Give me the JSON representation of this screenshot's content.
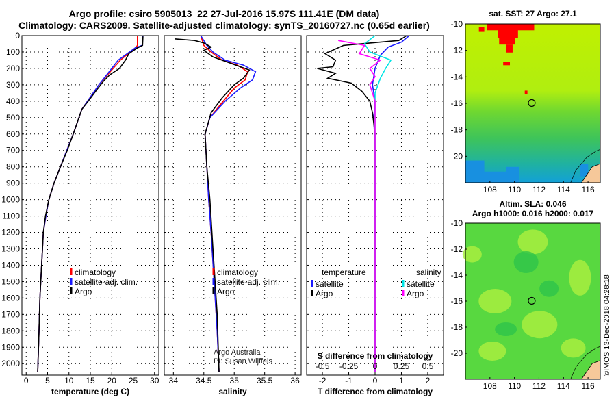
{
  "header": {
    "line1": "Argo profile: csiro 5905013_22 27-Jul-2016 15.97S 111.41E (DM data)",
    "line2": "Climatology: CARS2009. Satellite-adjusted climatology: synTS_20160727.nc (0.65d earlier)"
  },
  "colors": {
    "climatology": "#ff0000",
    "satellite": "#1a1aff",
    "argo": "#000000",
    "sal_satellite": "#00e5e5",
    "sal_argo": "#ff00ff"
  },
  "chart_data": [
    {
      "type": "line",
      "id": "temperature",
      "xlabel": "temperature (deg C)",
      "ylabel": "depth",
      "xlim": [
        -1,
        31
      ],
      "ylim": [
        0,
        2070
      ],
      "y_inverted": true,
      "xticks": [
        0,
        5,
        10,
        15,
        20,
        25,
        30
      ],
      "yticks": [
        0,
        100,
        200,
        300,
        400,
        500,
        600,
        700,
        800,
        900,
        1000,
        1100,
        1200,
        1300,
        1400,
        1500,
        1600,
        1700,
        1800,
        1900,
        2000
      ],
      "legend": [
        "climatology",
        "satellite-adj. clim.",
        "Argo"
      ],
      "series": [
        {
          "name": "climatology",
          "x": [
            26,
            26,
            25.5,
            22,
            17,
            13,
            11,
            9.5,
            8,
            6.5,
            5.3,
            4.6,
            4,
            3.6,
            3.2,
            3,
            2.7
          ],
          "y": [
            0,
            60,
            75,
            150,
            300,
            450,
            600,
            700,
            800,
            900,
            1000,
            1100,
            1200,
            1400,
            1600,
            1800,
            2050
          ]
        },
        {
          "name": "satellite-adj. clim.",
          "x": [
            27.3,
            27.1,
            25.5,
            21.5,
            17,
            13,
            11,
            9.5,
            8,
            6.5,
            5.3,
            4.6,
            4,
            3.6,
            3.2,
            3,
            2.7
          ],
          "y": [
            0,
            60,
            75,
            150,
            300,
            450,
            600,
            700,
            800,
            900,
            1000,
            1100,
            1200,
            1400,
            1600,
            1800,
            2050
          ]
        },
        {
          "name": "Argo",
          "x": [
            27.3,
            27.2,
            26,
            24,
            23.2,
            21.8,
            19.5,
            18,
            16.5,
            14.5,
            13,
            11,
            9.6,
            8,
            6.5,
            5.3,
            4.5,
            4,
            3.6,
            3.2,
            3,
            2.7
          ],
          "y": [
            5,
            60,
            75,
            110,
            150,
            200,
            240,
            280,
            330,
            400,
            450,
            600,
            700,
            800,
            900,
            1000,
            1100,
            1200,
            1400,
            1600,
            1800,
            2050
          ]
        }
      ]
    },
    {
      "type": "line",
      "id": "salinity",
      "xlabel": "salinity",
      "ylabel": "depth",
      "xlim": [
        33.85,
        36.1
      ],
      "ylim": [
        0,
        2070
      ],
      "y_inverted": true,
      "xticks": [
        34,
        34.5,
        35,
        35.5,
        36
      ],
      "xticklabels": [
        "34",
        "34.5",
        "35",
        "35.5",
        "36"
      ],
      "yticks": [
        0,
        100,
        200,
        300,
        400,
        500,
        600,
        700,
        800,
        900,
        1000,
        1100,
        1200,
        1300,
        1400,
        1500,
        1600,
        1700,
        1800,
        1900,
        2000
      ],
      "legend": [
        "climatology",
        "satellite-adj. clim.",
        "Argo"
      ],
      "annotation": [
        "Argo Australia",
        "PI: Susan Wijffels"
      ],
      "series": [
        {
          "name": "climatology",
          "x": [
            34.45,
            34.5,
            34.62,
            34.8,
            35.05,
            35.22,
            35.18,
            35,
            34.82,
            34.6,
            34.52,
            34.55,
            34.58,
            34.62,
            34.67,
            34.72,
            34.75
          ],
          "y": [
            0,
            60,
            100,
            150,
            180,
            220,
            270,
            320,
            400,
            500,
            600,
            800,
            1000,
            1200,
            1500,
            1800,
            2050
          ]
        },
        {
          "name": "satellite-adj. clim.",
          "x": [
            34.45,
            34.55,
            34.65,
            34.85,
            35.15,
            35.35,
            35.3,
            35.1,
            34.85,
            34.6,
            34.52,
            34.55,
            34.58,
            34.62,
            34.67,
            34.72,
            34.75
          ],
          "y": [
            0,
            60,
            100,
            150,
            180,
            220,
            270,
            320,
            400,
            500,
            600,
            800,
            1000,
            1200,
            1500,
            1800,
            2050
          ]
        },
        {
          "name": "Argo",
          "x": [
            34.02,
            34.35,
            34.5,
            34.62,
            34.5,
            34.65,
            34.95,
            35.25,
            35.15,
            35,
            34.8,
            34.62,
            34.52,
            34.55,
            34.6,
            34.65,
            34.72,
            34.75
          ],
          "y": [
            20,
            30,
            45,
            70,
            90,
            130,
            170,
            210,
            260,
            300,
            380,
            470,
            600,
            800,
            1000,
            1300,
            1700,
            2050
          ]
        }
      ]
    },
    {
      "type": "line",
      "id": "difference",
      "xlabel": "T difference from climatology",
      "ylabel": "depth",
      "xlim": [
        -2.6,
        2.6
      ],
      "ylim": [
        0,
        2070
      ],
      "y_inverted": true,
      "xticks": [
        -2,
        -1,
        0,
        1,
        2
      ],
      "s_axis_title": "S difference from climatology",
      "s_ticks": [
        -0.5,
        -0.25,
        0,
        0.25,
        0.5
      ],
      "s_ticklabels": [
        "-0.5",
        "-0.25",
        "0",
        "0.25",
        "0.5"
      ],
      "yticks": [
        0,
        100,
        200,
        300,
        400,
        500,
        600,
        700,
        800,
        900,
        1000,
        1100,
        1200,
        1300,
        1400,
        1500,
        1600,
        1700,
        1800,
        1900,
        2000
      ],
      "legend_temperature_title": "temperature",
      "legend_salinity_title": "salinity",
      "legend": [
        "satellite",
        "Argo"
      ],
      "series": [
        {
          "name": "T satellite",
          "x": [
            1.3,
            1,
            0.5,
            0.2,
            0,
            -0.1,
            0,
            -0.05,
            0,
            0,
            0
          ],
          "y": [
            0,
            40,
            70,
            120,
            200,
            300,
            400,
            500,
            700,
            1000,
            2050
          ]
        },
        {
          "name": "T Argo",
          "x": [
            1.2,
            0.9,
            -1.2,
            -1.9,
            -1.5,
            -1.6,
            -2.2,
            -1.5,
            -1.8,
            -0.9,
            -0.5,
            -0.2,
            -0.1,
            0,
            0
          ],
          "y": [
            0,
            30,
            60,
            110,
            150,
            190,
            200,
            230,
            260,
            290,
            340,
            400,
            470,
            600,
            2050
          ]
        },
        {
          "name": "S satellite",
          "x": [
            0,
            -0.1,
            -0.05,
            0.15,
            0.1,
            0.05,
            0,
            0,
            0,
            0,
            0
          ],
          "y": [
            0,
            50,
            100,
            150,
            200,
            260,
            350,
            500,
            1000,
            1500,
            2050
          ]
        },
        {
          "name": "S Argo",
          "x": [
            -0.35,
            -0.1,
            -0.15,
            0.05,
            -0.05,
            0,
            -0.05,
            0,
            0,
            0,
            0,
            0
          ],
          "y": [
            30,
            60,
            110,
            150,
            200,
            250,
            300,
            400,
            600,
            900,
            1500,
            2050
          ]
        }
      ]
    },
    {
      "type": "heatmap",
      "id": "sst_map",
      "title": "sat. SST: 27 Argo: 27.1",
      "xlim": [
        106,
        117
      ],
      "ylim": [
        -22,
        -10
      ],
      "xticks": [
        108,
        110,
        112,
        114,
        116
      ],
      "yticks": [
        -10,
        -12,
        -14,
        -16,
        -18,
        -20
      ],
      "marker": {
        "lon": 111.41,
        "lat": -15.97
      }
    },
    {
      "type": "heatmap",
      "id": "sla_map",
      "title": "Altim. SLA: 0.046",
      "subtitle": "Argo h1000: 0.016 h2000: 0.017",
      "xlim": [
        106,
        117
      ],
      "ylim": [
        -22,
        -10
      ],
      "xticks": [
        108,
        110,
        112,
        114,
        116
      ],
      "yticks": [
        -10,
        -12,
        -14,
        -16,
        -18,
        -20
      ],
      "marker": {
        "lon": 111.41,
        "lat": -15.97
      }
    }
  ],
  "footer": {
    "side_text": "©IMOS 13-Dec-2018 04:28:18"
  }
}
